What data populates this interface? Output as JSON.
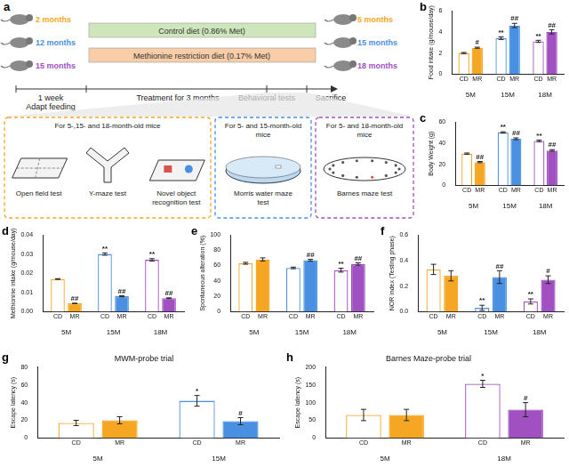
{
  "panel_a": {
    "panel": "a",
    "start_ages": [
      {
        "text": "2 months",
        "color": "#f5a623"
      },
      {
        "text": "12 months",
        "color": "#4a90e2"
      },
      {
        "text": "15 months",
        "color": "#a050c0"
      }
    ],
    "end_ages": [
      {
        "text": "5 months",
        "color": "#f5a623"
      },
      {
        "text": "15 months",
        "color": "#4a90e2"
      },
      {
        "text": "18 months",
        "color": "#a050c0"
      }
    ],
    "diets": [
      {
        "text": "Control diet (0.86% Met)",
        "color": "#cfe6bd"
      },
      {
        "text": "Methionine restriction diet (0.17% Met)",
        "color": "#f9cda8"
      }
    ],
    "adapt": [
      "1 week",
      "Adapt feeding"
    ],
    "treatment": "Treatment for 3 months",
    "end": [
      "Behavioral tests",
      "Sacrifice"
    ],
    "test_groups": [
      {
        "title": "For 5-,15- and 18-month-old mice",
        "color": "#f5a623",
        "tests": [
          "Open field test",
          "Y-maze test",
          "Novel object recognition test"
        ]
      },
      {
        "title": "For 5- and 15-month-old mice",
        "color": "#4a90e2",
        "tests": [
          "Morris water maze test"
        ]
      },
      {
        "title": "For 5- and 18-month-old mice",
        "color": "#a050c0",
        "tests": [
          "Barnes maze test"
        ]
      }
    ]
  },
  "chart_data": [
    {
      "panel": "b",
      "type": "bar",
      "y_label": "Food intake (g/mouse/day)",
      "categories": [
        "5M",
        "15M",
        "18M"
      ],
      "ylim": [
        0,
        6
      ],
      "yticks": [
        0,
        2,
        4,
        6
      ],
      "grid": false,
      "series": [
        {
          "name": "CD",
          "colors": [
            "#f5a623",
            "#4a90e2",
            "#a050c0"
          ],
          "values": [
            2.0,
            3.4,
            3.1
          ],
          "errors": [
            0.05,
            0.12,
            0.1
          ],
          "significance": [
            null,
            "**",
            "**"
          ]
        },
        {
          "name": "MR",
          "colors": [
            "#f5a623",
            "#4a90e2",
            "#a050c0"
          ],
          "values": [
            2.5,
            4.6,
            4.0
          ],
          "errors": [
            0.05,
            0.2,
            0.2
          ],
          "significance": [
            "#",
            "##",
            "##"
          ]
        }
      ]
    },
    {
      "panel": "c",
      "type": "bar",
      "y_label": "Body Weight (g)",
      "categories": [
        "5M",
        "15M",
        "18M"
      ],
      "ylim": [
        0,
        60
      ],
      "yticks": [
        0,
        20,
        40,
        60
      ],
      "grid": false,
      "series": [
        {
          "name": "CD",
          "colors": [
            "#f5a623",
            "#4a90e2",
            "#a050c0"
          ],
          "values": [
            30,
            50,
            42
          ],
          "errors": [
            0.6,
            0.6,
            0.8
          ],
          "significance": [
            null,
            "**",
            "**"
          ]
        },
        {
          "name": "MR",
          "colors": [
            "#f5a623",
            "#4a90e2",
            "#a050c0"
          ],
          "values": [
            22,
            44,
            33
          ],
          "errors": [
            0.6,
            0.9,
            0.8
          ],
          "significance": [
            "##",
            "##",
            "##"
          ]
        }
      ]
    },
    {
      "panel": "d",
      "type": "bar",
      "y_label": "Methionine intake (g/mouse/day)",
      "categories": [
        "5M",
        "15M",
        "18M"
      ],
      "ylim": [
        0,
        0.04
      ],
      "yticks": [
        {
          "value": 0,
          "label": "0.00"
        },
        0.01,
        0.02,
        0.03,
        0.04
      ],
      "grid": false,
      "series": [
        {
          "name": "CD",
          "colors": [
            "#f5a623",
            "#4a90e2",
            "#a050c0"
          ],
          "values": [
            0.017,
            0.03,
            0.027
          ],
          "errors": [
            0.0002,
            0.0006,
            0.0006
          ],
          "significance": [
            null,
            "**",
            "**"
          ]
        },
        {
          "name": "MR",
          "colors": [
            "#f5a623",
            "#4a90e2",
            "#a050c0"
          ],
          "values": [
            0.0043,
            0.008,
            0.007
          ],
          "errors": [
            0.0001,
            0.0003,
            0.0002
          ],
          "significance": [
            "##",
            "##",
            "##"
          ]
        }
      ]
    },
    {
      "panel": "e",
      "type": "bar",
      "y_label": "Spontaneous alteration (%)",
      "categories": [
        "5M",
        "15M",
        "18M"
      ],
      "ylim": [
        0,
        100
      ],
      "yticks": [
        0,
        20,
        40,
        60,
        80,
        100
      ],
      "grid": false,
      "series": [
        {
          "name": "CD",
          "colors": [
            "#f5a623",
            "#4a90e2",
            "#a050c0"
          ],
          "values": [
            63,
            57,
            54
          ],
          "errors": [
            1.2,
            1,
            2.5
          ],
          "significance": [
            null,
            null,
            "**"
          ]
        },
        {
          "name": "MR",
          "colors": [
            "#f5a623",
            "#4a90e2",
            "#a050c0"
          ],
          "values": [
            68,
            67,
            62
          ],
          "errors": [
            2,
            1.2,
            1.5
          ],
          "significance": [
            null,
            "##",
            "##"
          ]
        }
      ]
    },
    {
      "panel": "f",
      "type": "bar",
      "y_label": "NOR index (Testing phase)",
      "categories": [
        "5M",
        "15M",
        "18M"
      ],
      "ylim": [
        0,
        0.6
      ],
      "yticks": [
        {
          "value": 0,
          "label": "0.0"
        },
        0.2,
        0.4,
        0.6
      ],
      "grid": false,
      "series": [
        {
          "name": "CD",
          "colors": [
            "#f5a623",
            "#4a90e2",
            "#a050c0"
          ],
          "values": [
            0.33,
            0.03,
            0.08
          ],
          "errors": [
            0.04,
            0.02,
            0.02
          ],
          "significance": [
            null,
            "**",
            "**"
          ]
        },
        {
          "name": "MR",
          "colors": [
            "#f5a623",
            "#4a90e2",
            "#a050c0"
          ],
          "values": [
            0.28,
            0.27,
            0.25
          ],
          "errors": [
            0.04,
            0.05,
            0.03
          ],
          "significance": [
            null,
            "##",
            "#"
          ]
        }
      ]
    },
    {
      "panel": "g",
      "type": "bar",
      "title": "MWM-probe trial",
      "y_label": "Escape latency (s)",
      "categories": [
        "5M",
        "15M"
      ],
      "ylim": [
        0,
        80
      ],
      "yticks": [
        0,
        20,
        40,
        60,
        80
      ],
      "grid": false,
      "series": [
        {
          "name": "CD",
          "colors": [
            "#f5a623",
            "#4a90e2"
          ],
          "values": [
            17,
            42
          ],
          "errors": [
            3,
            6
          ],
          "significance": [
            null,
            "*"
          ]
        },
        {
          "name": "MR",
          "colors": [
            "#f5a623",
            "#4a90e2"
          ],
          "values": [
            20,
            19
          ],
          "errors": [
            4,
            4
          ],
          "significance": [
            null,
            "#"
          ]
        }
      ]
    },
    {
      "panel": "h",
      "type": "bar",
      "title": "Barnes Maze-probe trial",
      "y_label": "Escape latency (s)",
      "categories": [
        "5M",
        "18M"
      ],
      "ylim": [
        0,
        200
      ],
      "yticks": [
        0,
        50,
        100,
        150,
        200
      ],
      "grid": false,
      "series": [
        {
          "name": "CD",
          "colors": [
            "#f5a623",
            "#a050c0"
          ],
          "values": [
            65,
            153
          ],
          "errors": [
            16,
            10
          ],
          "significance": [
            null,
            "*"
          ]
        },
        {
          "name": "MR",
          "colors": [
            "#f5a623",
            "#a050c0"
          ],
          "values": [
            65,
            80
          ],
          "errors": [
            16,
            20
          ],
          "significance": [
            null,
            "#"
          ]
        }
      ]
    }
  ]
}
